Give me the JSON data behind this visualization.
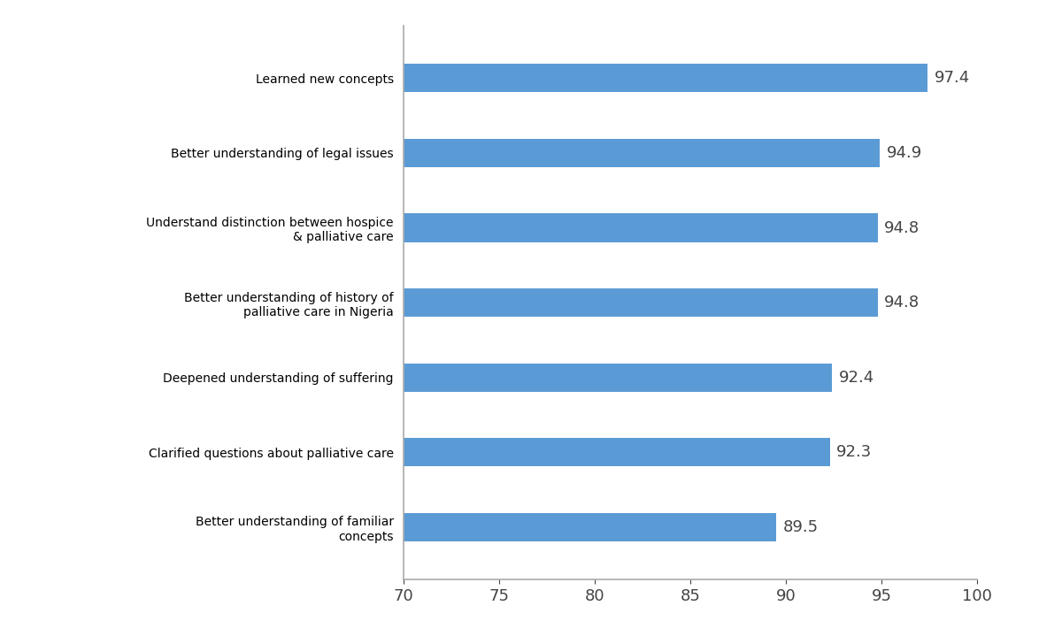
{
  "categories": [
    "Better understanding of familiar\nconcepts",
    "Clarified questions about palliative care",
    "Deepened understanding of suffering",
    "Better understanding of history of\npalliative care in Nigeria",
    "Understand distinction between hospice\n& palliative care",
    "Better understanding of legal issues",
    "Learned new concepts"
  ],
  "values": [
    89.5,
    92.3,
    92.4,
    94.8,
    94.8,
    94.9,
    97.4
  ],
  "bar_color": "#5b9bd5",
  "xlim": [
    70,
    100
  ],
  "xticks": [
    70,
    75,
    80,
    85,
    90,
    95,
    100
  ],
  "background_color": "#ffffff",
  "bar_height": 0.38,
  "label_fontsize": 13,
  "tick_fontsize": 13,
  "value_fontsize": 13,
  "text_color": "#444444",
  "spine_color": "#aaaaaa"
}
